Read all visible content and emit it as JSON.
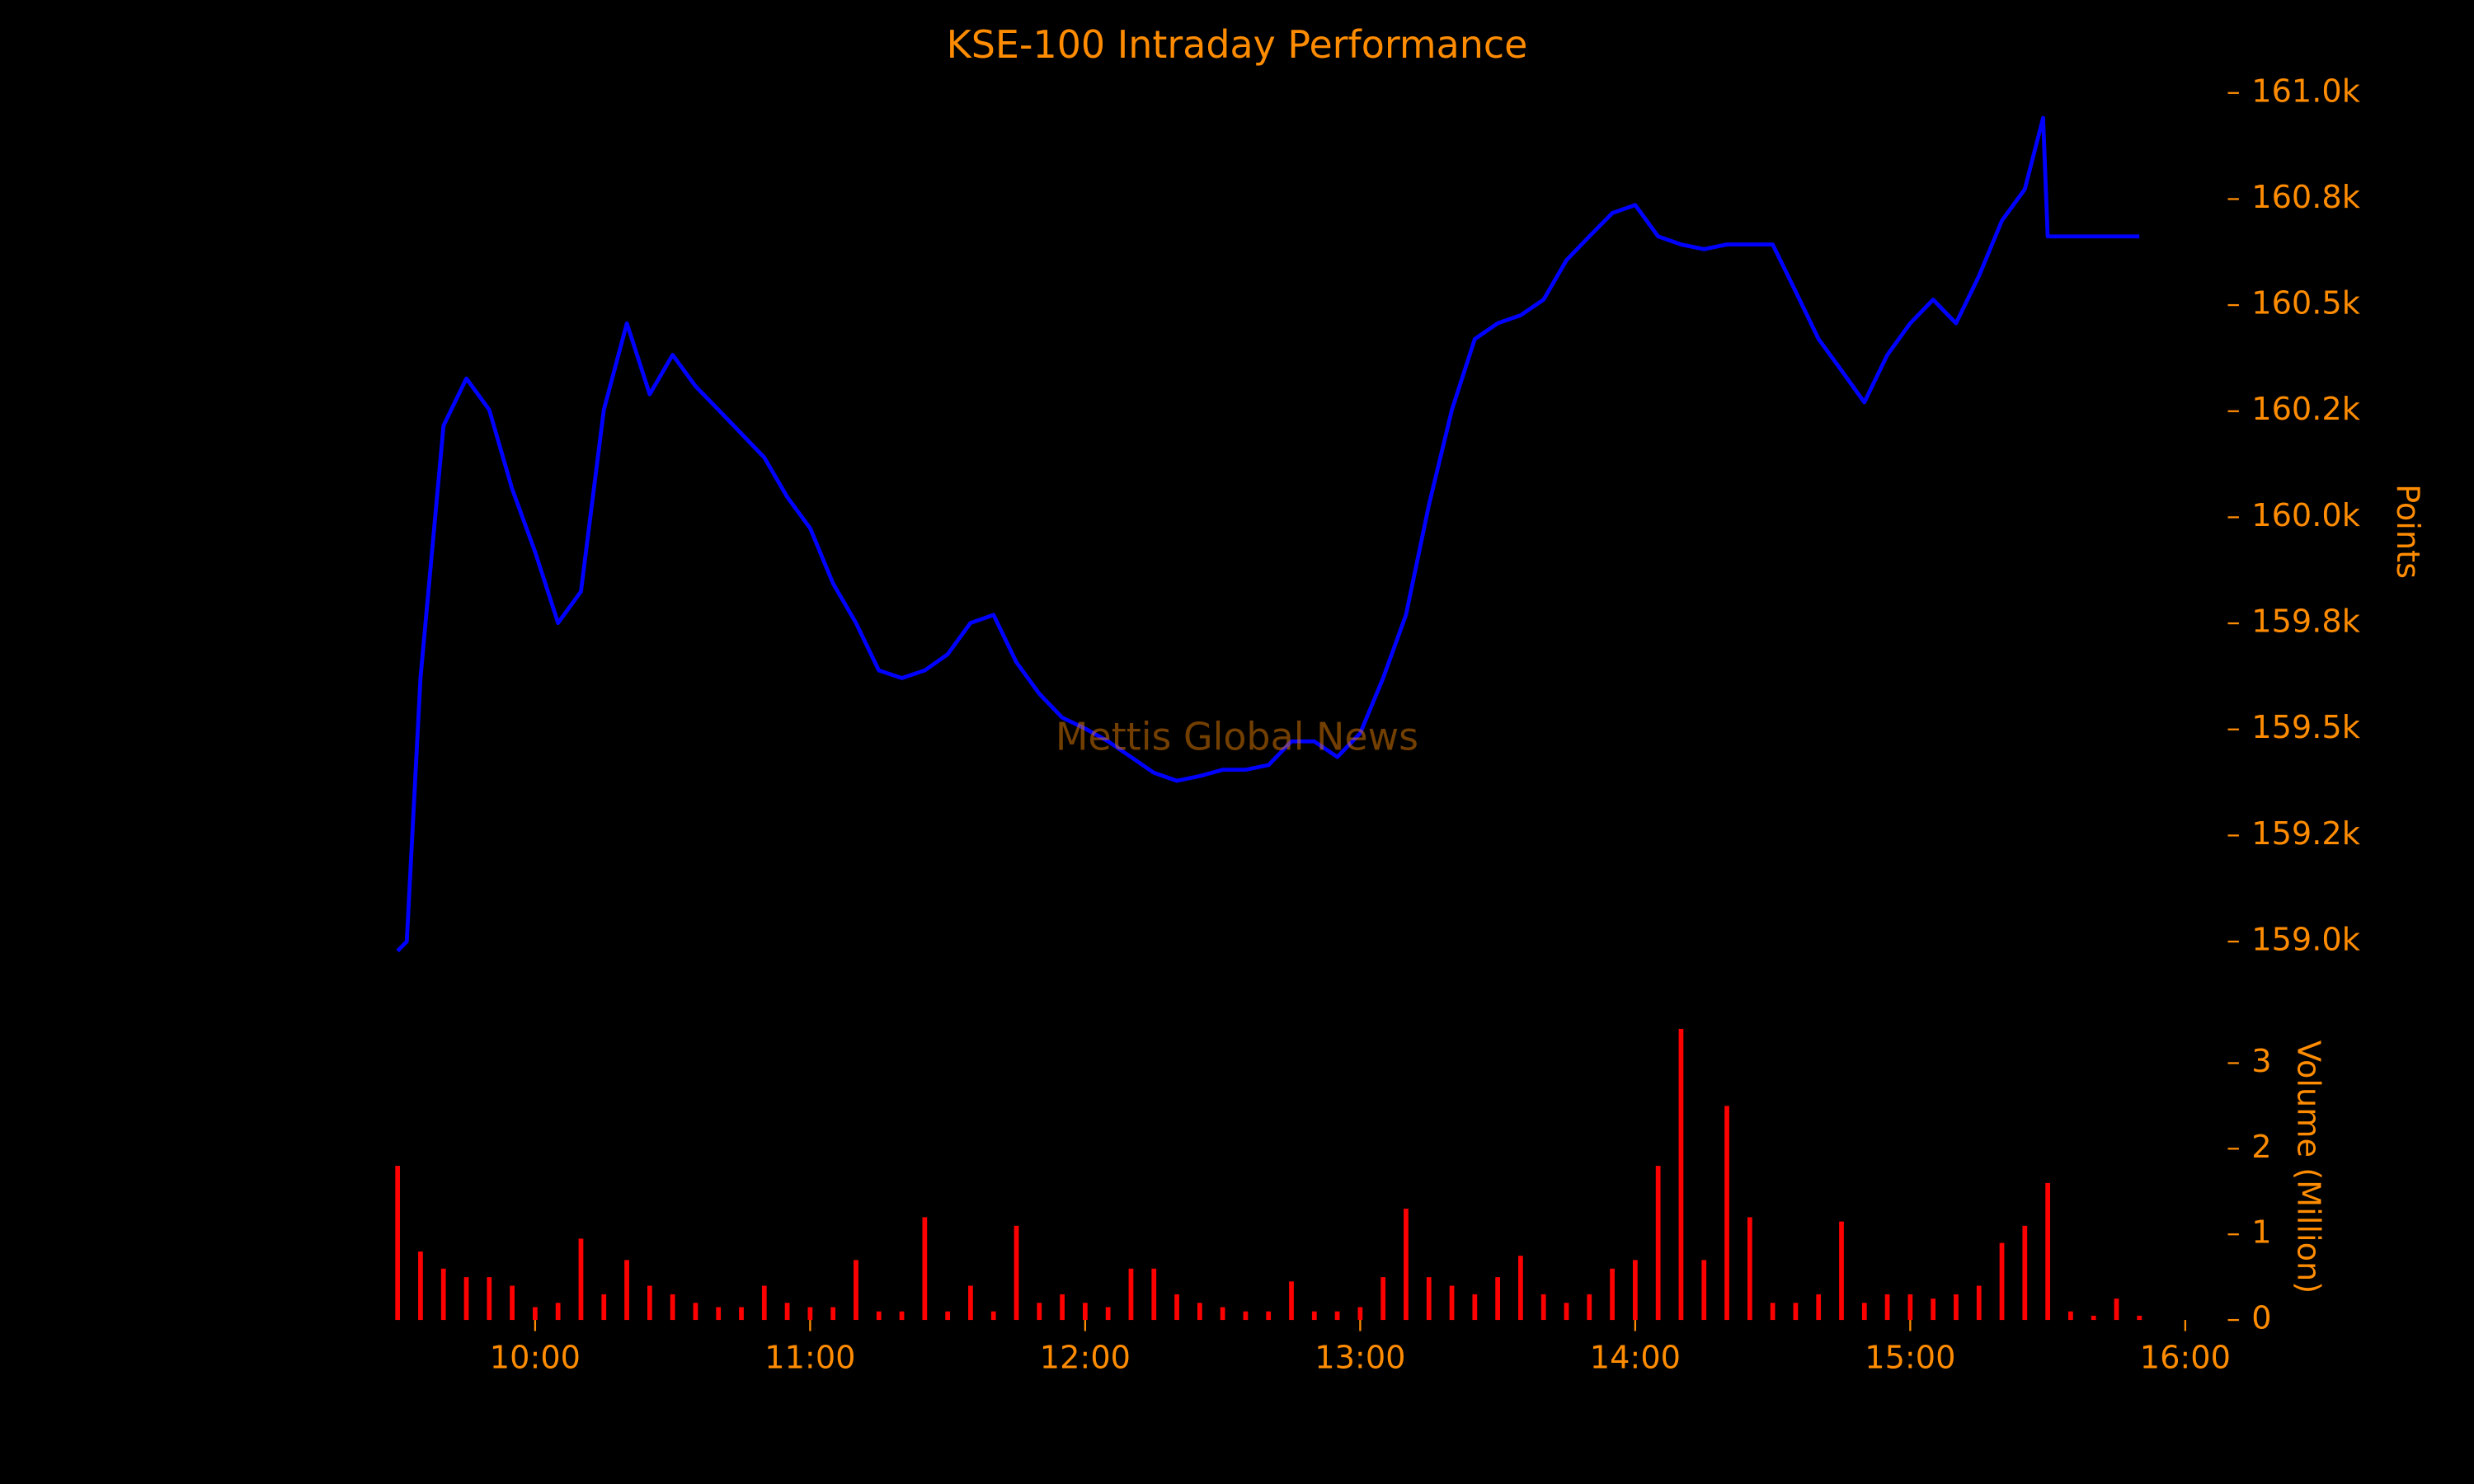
{
  "chart_data": [
    {
      "type": "line",
      "title": "KSE-100 Intraday Performance",
      "annotation": "Mettis Global News",
      "ylabel": "Points",
      "xlim": [
        "09:30",
        "16:00"
      ],
      "ylim": [
        158950,
        161050
      ],
      "yticks": [
        {
          "value": 159000,
          "label": "159.0k"
        },
        {
          "value": 159250,
          "label": "159.2k"
        },
        {
          "value": 159500,
          "label": "159.5k"
        },
        {
          "value": 159750,
          "label": "159.8k"
        },
        {
          "value": 160000,
          "label": "160.0k"
        },
        {
          "value": 160250,
          "label": "160.2k"
        },
        {
          "value": 160500,
          "label": "160.5k"
        },
        {
          "value": 160750,
          "label": "160.8k"
        },
        {
          "value": 161000,
          "label": "161.0k"
        }
      ],
      "series": [
        {
          "color": "#0000ff",
          "x": [
            "09:30",
            "09:32",
            "09:35",
            "09:40",
            "09:45",
            "09:50",
            "09:55",
            "10:00",
            "10:05",
            "10:10",
            "10:15",
            "10:20",
            "10:25",
            "10:30",
            "10:35",
            "10:40",
            "10:45",
            "10:50",
            "10:55",
            "11:00",
            "11:05",
            "11:10",
            "11:15",
            "11:20",
            "11:25",
            "11:30",
            "11:35",
            "11:40",
            "11:45",
            "11:50",
            "11:55",
            "12:00",
            "12:05",
            "12:10",
            "12:15",
            "12:20",
            "12:25",
            "12:30",
            "12:35",
            "12:40",
            "12:45",
            "12:50",
            "12:55",
            "13:00",
            "13:05",
            "13:10",
            "13:15",
            "13:20",
            "13:25",
            "13:30",
            "13:35",
            "13:40",
            "13:45",
            "13:50",
            "13:55",
            "14:00",
            "14:05",
            "14:10",
            "14:15",
            "14:20",
            "14:25",
            "14:30",
            "14:35",
            "14:40",
            "14:45",
            "14:50",
            "14:55",
            "15:00",
            "15:05",
            "15:10",
            "15:15",
            "15:20",
            "15:25",
            "15:29",
            "15:30",
            "15:50"
          ],
          "values": [
            158978,
            159000,
            159621,
            160216,
            160327,
            160253,
            160067,
            159918,
            159751,
            159825,
            160253,
            160457,
            160290,
            160383,
            160309,
            160253,
            160197,
            160141,
            160048,
            159974,
            159844,
            159751,
            159639,
            159621,
            159639,
            159677,
            159751,
            159770,
            159658,
            159584,
            159528,
            159502,
            159472,
            159435,
            159398,
            159379,
            159390,
            159405,
            159405,
            159416,
            159472,
            159472,
            159435,
            159491,
            159621,
            159770,
            160030,
            160253,
            160420,
            160457,
            160476,
            160513,
            160606,
            160662,
            160717,
            160736,
            160662,
            160643,
            160632,
            160643,
            160643,
            160643,
            160532,
            160420,
            160346,
            160271,
            160383,
            160457,
            160513,
            160457,
            160569,
            160699,
            160773,
            160941,
            160662,
            160662
          ]
        }
      ]
    },
    {
      "type": "bar",
      "ylabel": "Volume (Million)",
      "color": "#ff0000",
      "xlim": [
        "09:30",
        "16:00"
      ],
      "xticks": [
        "10:00",
        "11:00",
        "12:00",
        "13:00",
        "14:00",
        "15:00",
        "16:00"
      ],
      "ylim": [
        0,
        3.4
      ],
      "yticks": [
        0,
        1,
        2,
        3
      ],
      "x": [
        "09:30",
        "09:35",
        "09:40",
        "09:45",
        "09:50",
        "09:55",
        "10:00",
        "10:05",
        "10:10",
        "10:15",
        "10:20",
        "10:25",
        "10:30",
        "10:35",
        "10:40",
        "10:45",
        "10:50",
        "10:55",
        "11:00",
        "11:05",
        "11:10",
        "11:15",
        "11:20",
        "11:25",
        "11:30",
        "11:35",
        "11:40",
        "11:45",
        "11:50",
        "11:55",
        "12:00",
        "12:05",
        "12:10",
        "12:15",
        "12:20",
        "12:25",
        "12:30",
        "12:35",
        "12:40",
        "12:45",
        "12:50",
        "12:55",
        "13:00",
        "13:05",
        "13:10",
        "13:15",
        "13:20",
        "13:25",
        "13:30",
        "13:35",
        "13:40",
        "13:45",
        "13:50",
        "13:55",
        "14:00",
        "14:05",
        "14:10",
        "14:15",
        "14:20",
        "14:25",
        "14:30",
        "14:35",
        "14:40",
        "14:45",
        "14:50",
        "14:55",
        "15:00",
        "15:05",
        "15:10",
        "15:15",
        "15:20",
        "15:25",
        "15:30",
        "15:35",
        "15:40",
        "15:45",
        "15:50"
      ],
      "values": [
        1.8,
        0.8,
        0.6,
        0.5,
        0.5,
        0.4,
        0.15,
        0.2,
        0.95,
        0.3,
        0.7,
        0.4,
        0.3,
        0.2,
        0.15,
        0.15,
        0.4,
        0.2,
        0.15,
        0.15,
        0.7,
        0.1,
        0.1,
        1.2,
        0.1,
        0.4,
        0.1,
        1.1,
        0.2,
        0.3,
        0.2,
        0.15,
        0.6,
        0.6,
        0.3,
        0.2,
        0.15,
        0.1,
        0.1,
        0.45,
        0.1,
        0.1,
        0.15,
        0.5,
        1.3,
        0.5,
        0.4,
        0.3,
        0.5,
        0.75,
        0.3,
        0.2,
        0.3,
        0.6,
        0.7,
        1.8,
        3.4,
        0.7,
        2.5,
        1.2,
        0.2,
        0.2,
        0.3,
        1.15,
        0.2,
        0.3,
        0.3,
        0.25,
        0.3,
        0.4,
        0.9,
        1.1,
        1.6,
        0.1,
        0.05,
        0.25,
        0.05
      ]
    }
  ]
}
